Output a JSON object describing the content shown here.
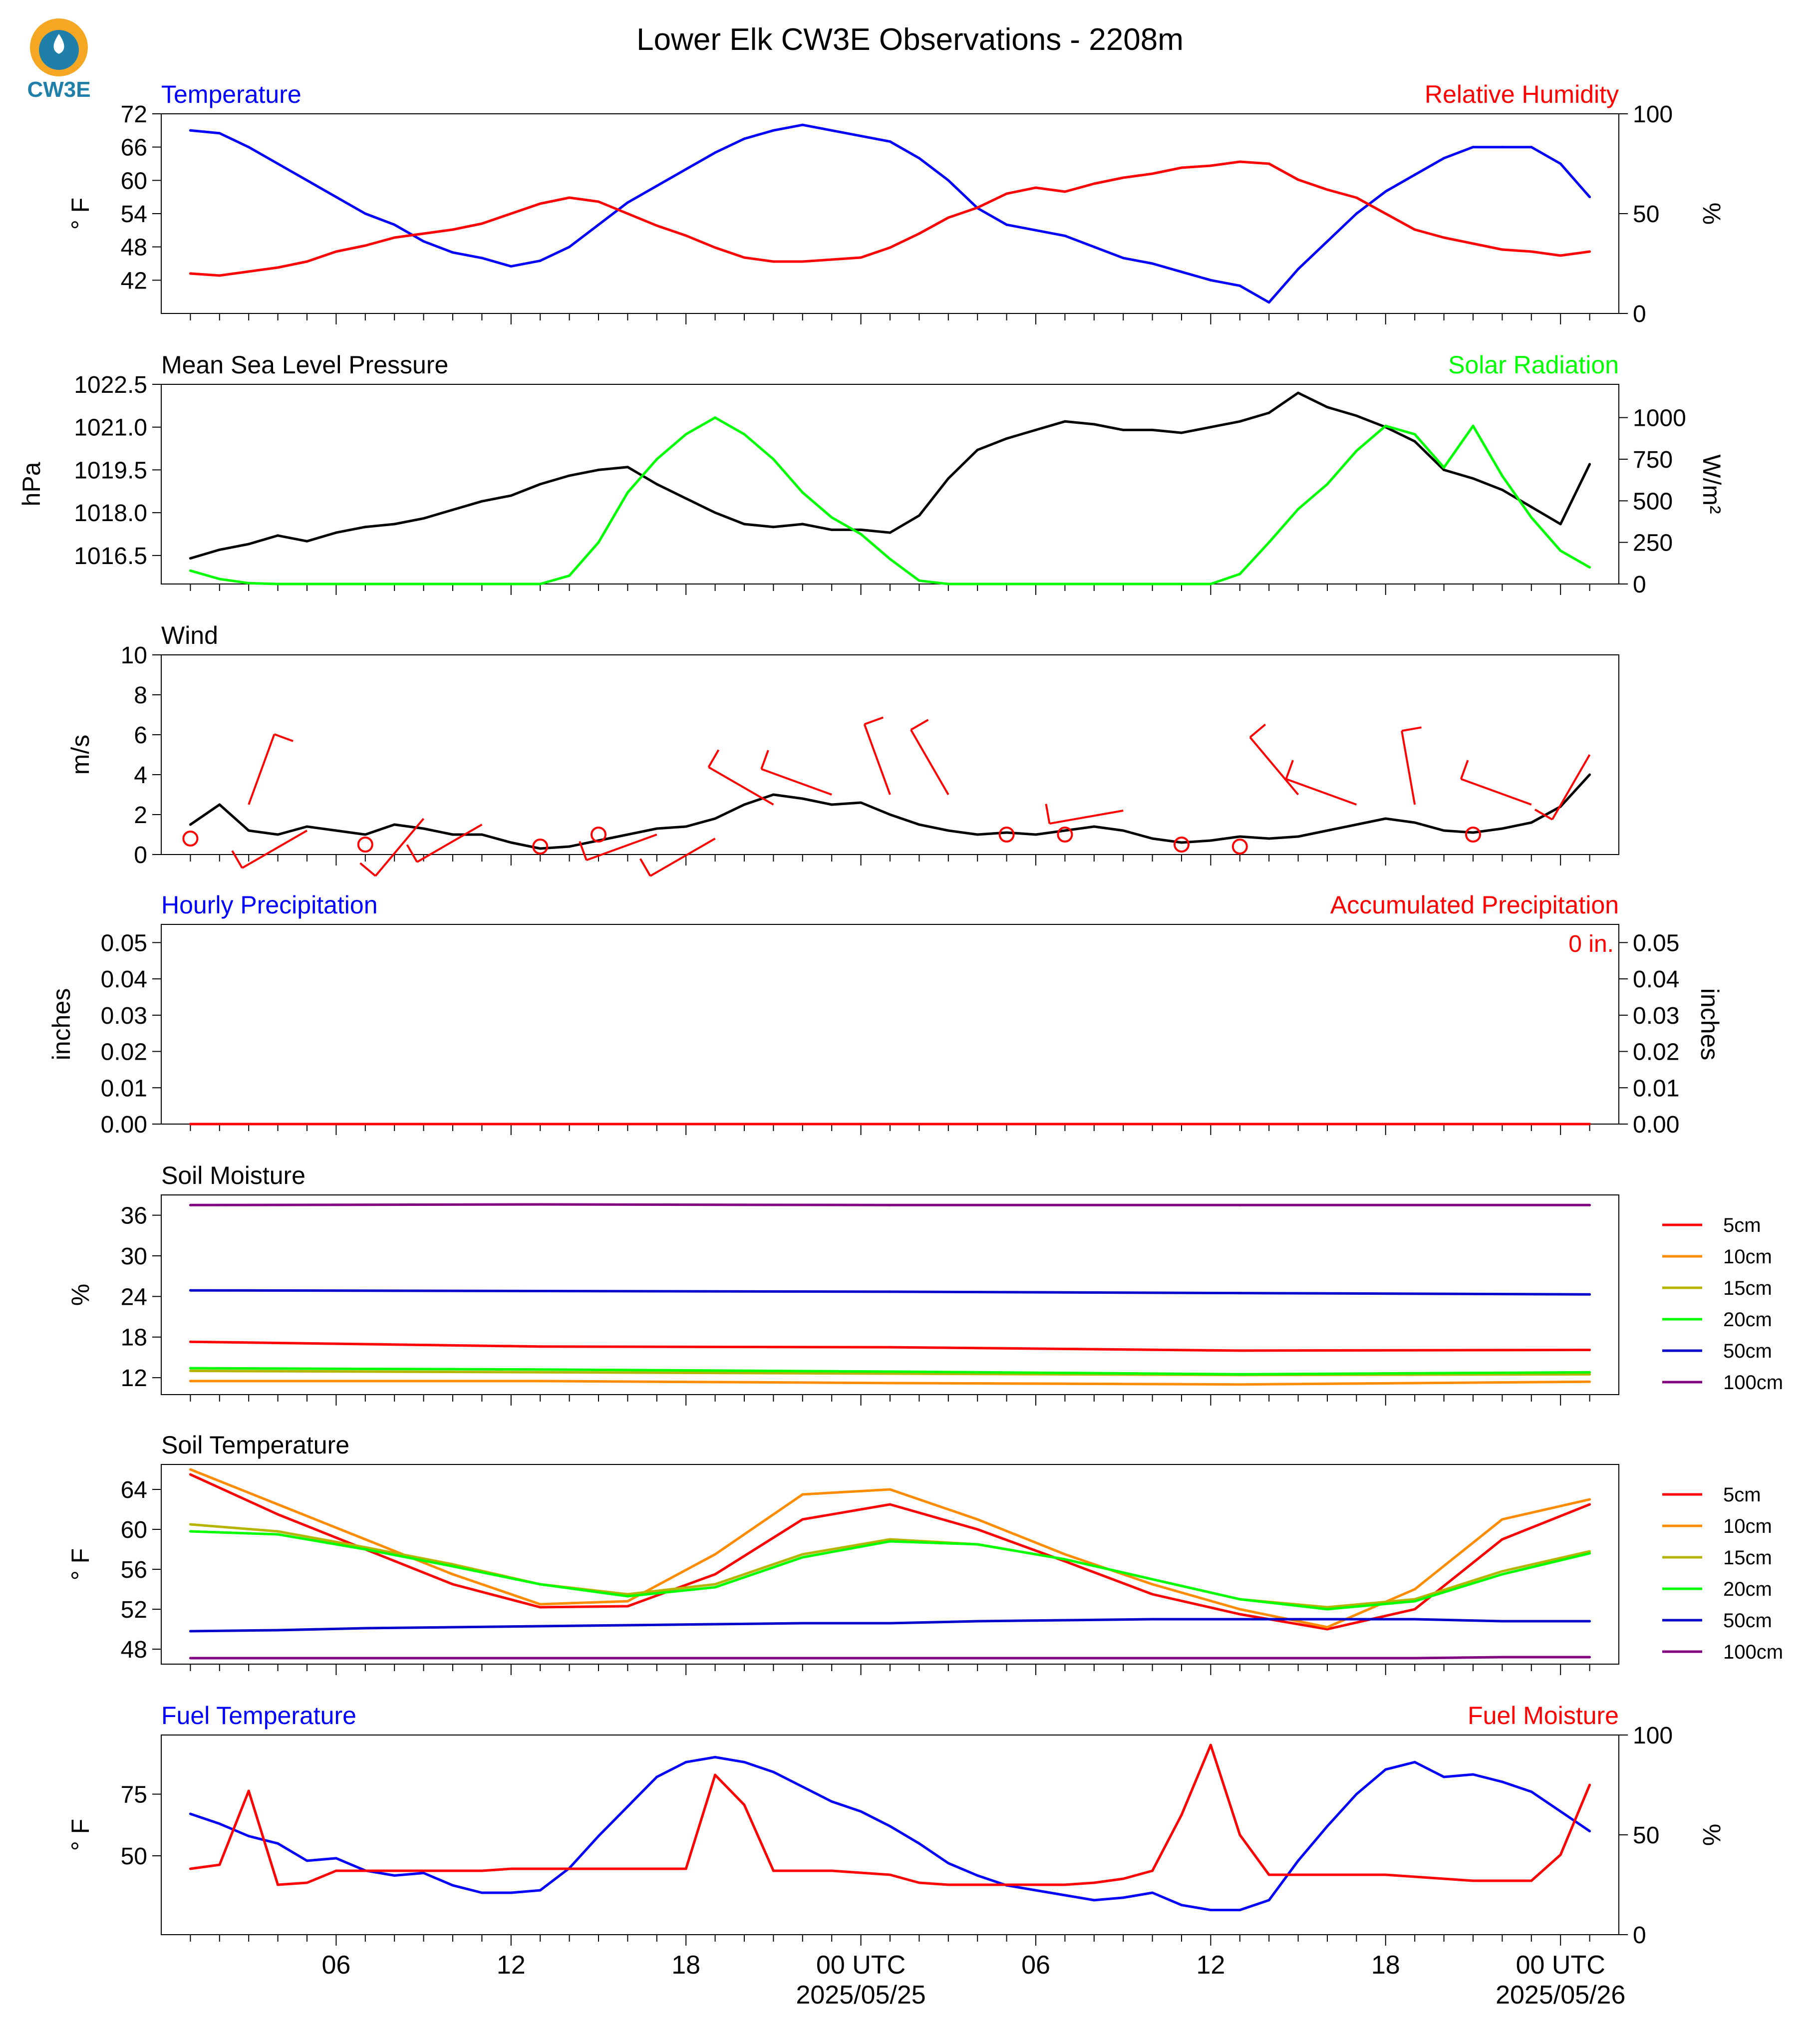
{
  "title": "Lower Elk CW3E Observations - 2208m",
  "logo": {
    "text": "CW3E",
    "icon": "cw3e-drop-logo",
    "colors": {
      "outer": "#f5a623",
      "inner": "#1f7fa8"
    }
  },
  "x_axis": {
    "tick_labels": [
      {
        "hour": 6,
        "label": "06"
      },
      {
        "hour": 12,
        "label": "12"
      },
      {
        "hour": 18,
        "label": "18"
      },
      {
        "hour": 24,
        "label": "00 UTC",
        "date": "2025/05/25"
      },
      {
        "hour": 30,
        "label": "06"
      },
      {
        "hour": 36,
        "label": "12"
      },
      {
        "hour": 42,
        "label": "18"
      },
      {
        "hour": 48,
        "label": "00 UTC",
        "date": "2025/05/26"
      }
    ]
  },
  "chart_data": [
    {
      "type": "line",
      "title_left": "Temperature",
      "title_right": "Relative Humidity",
      "ylabel_left": "° F",
      "ylabel_right": "%",
      "ylim_left": [
        36,
        72
      ],
      "yticks_left": [
        42,
        48,
        54,
        60,
        66,
        72
      ],
      "ylim_right": [
        0,
        100
      ],
      "yticks_right": [
        0,
        50,
        100
      ],
      "x": [
        1,
        2,
        3,
        4,
        5,
        6,
        7,
        8,
        9,
        10,
        11,
        12,
        13,
        14,
        15,
        16,
        17,
        18,
        19,
        20,
        21,
        22,
        23,
        24,
        25,
        26,
        27,
        28,
        29,
        30,
        31,
        32,
        33,
        34,
        35,
        36,
        37,
        38,
        39,
        40,
        41,
        42,
        43,
        44,
        45,
        46,
        47,
        48,
        49
      ],
      "series": [
        {
          "name": "Temperature",
          "axis": "left",
          "color": "#0000ff",
          "values": [
            69,
            68.5,
            66,
            63,
            60,
            57,
            54,
            52,
            49,
            47,
            46,
            44.5,
            45.5,
            48,
            52,
            56,
            59,
            62,
            65,
            67.5,
            69,
            70,
            69,
            68,
            67,
            64,
            60,
            55,
            52,
            51,
            50,
            48,
            46,
            45,
            43.5,
            42,
            41,
            38,
            44,
            49,
            54,
            58,
            61,
            64,
            66,
            66,
            66,
            63,
            57
          ]
        },
        {
          "name": "Relative Humidity",
          "axis": "right",
          "color": "#ff0000",
          "values": [
            20,
            19,
            21,
            23,
            26,
            31,
            34,
            38,
            40,
            42,
            45,
            50,
            55,
            58,
            56,
            50,
            44,
            39,
            33,
            28,
            26,
            26,
            27,
            28,
            33,
            40,
            48,
            53,
            60,
            63,
            61,
            65,
            68,
            70,
            73,
            74,
            76,
            75,
            67,
            62,
            58,
            50,
            42,
            38,
            35,
            32,
            31,
            29,
            31
          ]
        }
      ]
    },
    {
      "type": "line",
      "title_left": "Mean Sea Level Pressure",
      "title_right": "Solar Radiation",
      "ylabel_left": "hPa",
      "ylabel_right": "W/m²",
      "ylim_left": [
        1015.5,
        1022.5
      ],
      "yticks_left": [
        1016.5,
        1018.0,
        1019.5,
        1021.0,
        1022.5
      ],
      "ylim_right": [
        0,
        1200
      ],
      "yticks_right": [
        0,
        250,
        500,
        750,
        1000
      ],
      "x": [
        1,
        2,
        3,
        4,
        5,
        6,
        7,
        8,
        9,
        10,
        11,
        12,
        13,
        14,
        15,
        16,
        17,
        18,
        19,
        20,
        21,
        22,
        23,
        24,
        25,
        26,
        27,
        28,
        29,
        30,
        31,
        32,
        33,
        34,
        35,
        36,
        37,
        38,
        39,
        40,
        41,
        42,
        43,
        44,
        45,
        46,
        47,
        48,
        49
      ],
      "series": [
        {
          "name": "Mean Sea Level Pressure",
          "axis": "left",
          "color": "#000000",
          "values": [
            1016.4,
            1016.7,
            1016.9,
            1017.2,
            1017.0,
            1017.3,
            1017.5,
            1017.6,
            1017.8,
            1018.1,
            1018.4,
            1018.6,
            1019.0,
            1019.3,
            1019.5,
            1019.6,
            1019.0,
            1018.5,
            1018.0,
            1017.6,
            1017.5,
            1017.6,
            1017.4,
            1017.4,
            1017.3,
            1017.9,
            1019.2,
            1020.2,
            1020.6,
            1020.9,
            1021.2,
            1021.1,
            1020.9,
            1020.9,
            1020.8,
            1021.0,
            1021.2,
            1021.5,
            1022.2,
            1021.7,
            1021.4,
            1021.0,
            1020.5,
            1019.5,
            1019.2,
            1018.8,
            1018.2,
            1017.6,
            1019.7
          ]
        },
        {
          "name": "Solar Radiation",
          "axis": "right",
          "color": "#00ff00",
          "values": [
            80,
            30,
            5,
            0,
            0,
            0,
            0,
            0,
            0,
            0,
            0,
            0,
            0,
            50,
            250,
            550,
            750,
            900,
            1000,
            900,
            750,
            550,
            400,
            300,
            150,
            20,
            0,
            0,
            0,
            0,
            0,
            0,
            0,
            0,
            0,
            0,
            60,
            250,
            450,
            600,
            800,
            950,
            900,
            700,
            950,
            650,
            400,
            200,
            100
          ]
        }
      ]
    },
    {
      "type": "line",
      "title_left": "Wind",
      "ylabel_left": "m/s",
      "ylim_left": [
        0,
        10
      ],
      "yticks_left": [
        0,
        2,
        4,
        6,
        8,
        10
      ],
      "x": [
        1,
        2,
        3,
        4,
        5,
        6,
        7,
        8,
        9,
        10,
        11,
        12,
        13,
        14,
        15,
        16,
        17,
        18,
        19,
        20,
        21,
        22,
        23,
        24,
        25,
        26,
        27,
        28,
        29,
        30,
        31,
        32,
        33,
        34,
        35,
        36,
        37,
        38,
        39,
        40,
        41,
        42,
        43,
        44,
        45,
        46,
        47,
        48,
        49
      ],
      "series": [
        {
          "name": "Wind Speed",
          "axis": "left",
          "color": "#000000",
          "values": [
            1.5,
            2.5,
            1.2,
            1.0,
            1.4,
            1.2,
            1.0,
            1.5,
            1.3,
            1.0,
            1.0,
            0.6,
            0.3,
            0.4,
            0.7,
            1.0,
            1.3,
            1.4,
            1.8,
            2.5,
            3.0,
            2.8,
            2.5,
            2.6,
            2.0,
            1.5,
            1.2,
            1.0,
            1.1,
            1.0,
            1.2,
            1.4,
            1.2,
            0.8,
            0.6,
            0.7,
            0.9,
            0.8,
            0.9,
            1.2,
            1.5,
            1.8,
            1.6,
            1.2,
            1.1,
            1.3,
            1.6,
            2.4,
            4.0
          ]
        }
      ],
      "barbs": {
        "color": "#ff0000",
        "x": [
          1,
          3,
          5,
          7,
          9,
          11,
          13,
          15,
          17,
          19,
          21,
          23,
          25,
          27,
          29,
          31,
          33,
          35,
          37,
          39,
          41,
          43,
          45,
          47,
          49
        ],
        "speed": [
          0.8,
          2.5,
          1.2,
          0.5,
          1.8,
          1.5,
          0.4,
          1.0,
          1.0,
          0.8,
          2.5,
          3.0,
          3.0,
          3.0,
          1.0,
          1.0,
          2.2,
          0.5,
          0.4,
          3.0,
          2.5,
          2.5,
          1.0,
          2.5,
          5.0
        ],
        "direction": [
          0,
          20,
          240,
          0,
          220,
          240,
          0,
          0,
          250,
          240,
          300,
          290,
          340,
          330,
          0,
          0,
          260,
          0,
          0,
          320,
          290,
          350,
          0,
          290,
          210
        ]
      }
    },
    {
      "type": "line",
      "title_left": "Hourly Precipitation",
      "title_right": "Accumulated Precipitation",
      "annotation": "0 in.",
      "ylabel_left": "inches",
      "ylabel_right": "inches",
      "ylim_left": [
        0,
        0.055
      ],
      "yticks_left": [
        0.0,
        0.01,
        0.02,
        0.03,
        0.04,
        0.05
      ],
      "ylim_right": [
        0,
        0.055
      ],
      "yticks_right": [
        0.0,
        0.01,
        0.02,
        0.03,
        0.04,
        0.05
      ],
      "x": [
        1,
        49
      ],
      "series": [
        {
          "name": "Hourly Precipitation",
          "axis": "left",
          "color": "#0000ff",
          "values": [
            0,
            0
          ]
        },
        {
          "name": "Accumulated Precipitation",
          "axis": "right",
          "color": "#ff0000",
          "values": [
            0,
            0
          ]
        }
      ]
    },
    {
      "type": "line",
      "title_left": "Soil Moisture",
      "ylabel_left": "%",
      "ylim_left": [
        9.5,
        39
      ],
      "yticks_left": [
        12,
        18,
        24,
        30,
        36
      ],
      "legend": "right",
      "x": [
        1,
        13,
        25,
        37,
        49
      ],
      "series": [
        {
          "name": "5cm",
          "axis": "left",
          "color": "#ff0000",
          "values": [
            17.3,
            16.6,
            16.5,
            16.0,
            16.1
          ]
        },
        {
          "name": "10cm",
          "axis": "left",
          "color": "#ff8c00",
          "values": [
            11.5,
            11.5,
            11.2,
            11.0,
            11.4
          ]
        },
        {
          "name": "15cm",
          "axis": "left",
          "color": "#b5b500",
          "values": [
            13.0,
            12.8,
            12.6,
            12.4,
            12.5
          ]
        },
        {
          "name": "20cm",
          "axis": "left",
          "color": "#00ff00",
          "values": [
            13.4,
            13.2,
            12.9,
            12.5,
            12.8
          ]
        },
        {
          "name": "50cm",
          "axis": "left",
          "color": "#0000cd",
          "values": [
            24.9,
            24.8,
            24.7,
            24.5,
            24.3
          ]
        },
        {
          "name": "100cm",
          "axis": "left",
          "color": "#800080",
          "values": [
            37.5,
            37.6,
            37.5,
            37.5,
            37.5
          ]
        }
      ]
    },
    {
      "type": "line",
      "title_left": "Soil Temperature",
      "ylabel_left": "° F",
      "ylim_left": [
        46.5,
        66.5
      ],
      "yticks_left": [
        48,
        52,
        56,
        60,
        64
      ],
      "legend": "right",
      "x": [
        1,
        4,
        7,
        10,
        13,
        16,
        19,
        22,
        25,
        28,
        31,
        34,
        37,
        40,
        43,
        46,
        49
      ],
      "series": [
        {
          "name": "5cm",
          "axis": "left",
          "color": "#ff0000",
          "values": [
            65.5,
            61.5,
            58,
            54.5,
            52.2,
            52.3,
            55.5,
            61,
            62.5,
            60.0,
            56.8,
            53.5,
            51.5,
            50.0,
            52.0,
            59.0,
            62.5
          ]
        },
        {
          "name": "10cm",
          "axis": "left",
          "color": "#ff8c00",
          "values": [
            66.0,
            62.5,
            59,
            55.5,
            52.5,
            52.8,
            57.5,
            63.5,
            64.0,
            61.0,
            57.5,
            54.5,
            52.0,
            50.2,
            54.0,
            61.0,
            63.0
          ]
        },
        {
          "name": "15cm",
          "axis": "left",
          "color": "#b5b500",
          "values": [
            60.5,
            59.8,
            58.2,
            56.5,
            54.5,
            53.5,
            54.5,
            57.5,
            59.0,
            58.5,
            57.0,
            55.0,
            53.0,
            52.2,
            53.0,
            55.8,
            57.8
          ]
        },
        {
          "name": "20cm",
          "axis": "left",
          "color": "#00ff00",
          "values": [
            59.8,
            59.5,
            58.0,
            56.3,
            54.5,
            53.3,
            54.2,
            57.2,
            58.8,
            58.5,
            57.0,
            55.0,
            53.0,
            52.0,
            52.8,
            55.5,
            57.6
          ]
        },
        {
          "name": "50cm",
          "axis": "left",
          "color": "#0000cd",
          "values": [
            49.8,
            49.9,
            50.1,
            50.2,
            50.3,
            50.4,
            50.5,
            50.6,
            50.6,
            50.8,
            50.9,
            51.0,
            51.0,
            51.0,
            51.0,
            50.8,
            50.8
          ]
        },
        {
          "name": "100cm",
          "axis": "left",
          "color": "#800080",
          "values": [
            47.1,
            47.1,
            47.1,
            47.1,
            47.1,
            47.1,
            47.1,
            47.1,
            47.1,
            47.1,
            47.1,
            47.1,
            47.1,
            47.1,
            47.1,
            47.2,
            47.2
          ]
        }
      ]
    },
    {
      "type": "line",
      "title_left": "Fuel Temperature",
      "title_right": "Fuel Moisture",
      "ylabel_left": "° F",
      "ylabel_right": "%",
      "ylim_left": [
        18,
        99
      ],
      "yticks_left": [
        50,
        75
      ],
      "ylim_right": [
        0,
        100
      ],
      "yticks_right": [
        0,
        50,
        100
      ],
      "x": [
        1,
        2,
        3,
        4,
        5,
        6,
        7,
        8,
        9,
        10,
        11,
        12,
        13,
        14,
        15,
        16,
        17,
        18,
        19,
        20,
        21,
        22,
        23,
        24,
        25,
        26,
        27,
        28,
        29,
        30,
        31,
        32,
        33,
        34,
        35,
        36,
        37,
        38,
        39,
        40,
        41,
        42,
        43,
        44,
        45,
        46,
        47,
        48,
        49
      ],
      "series": [
        {
          "name": "Fuel Temperature",
          "axis": "left",
          "color": "#0000ff",
          "values": [
            67,
            63,
            58,
            55,
            48,
            49,
            44,
            42,
            43,
            38,
            35,
            35,
            36,
            45,
            58,
            70,
            82,
            88,
            90,
            88,
            84,
            78,
            72,
            68,
            62,
            55,
            47,
            42,
            38,
            36,
            34,
            32,
            33,
            35,
            30,
            28,
            28,
            32,
            48,
            62,
            75,
            85,
            88,
            82,
            83,
            80,
            76,
            68,
            60
          ]
        },
        {
          "name": "Fuel Moisture",
          "axis": "right",
          "color": "#ff0000",
          "values": [
            33,
            35,
            72,
            25,
            26,
            32,
            32,
            32,
            32,
            32,
            32,
            33,
            33,
            33,
            33,
            33,
            33,
            33,
            80,
            65,
            32,
            32,
            32,
            31,
            30,
            26,
            25,
            25,
            25,
            25,
            25,
            26,
            28,
            32,
            60,
            95,
            50,
            30,
            30,
            30,
            30,
            30,
            29,
            28,
            27,
            27,
            27,
            40,
            75
          ]
        }
      ]
    }
  ]
}
